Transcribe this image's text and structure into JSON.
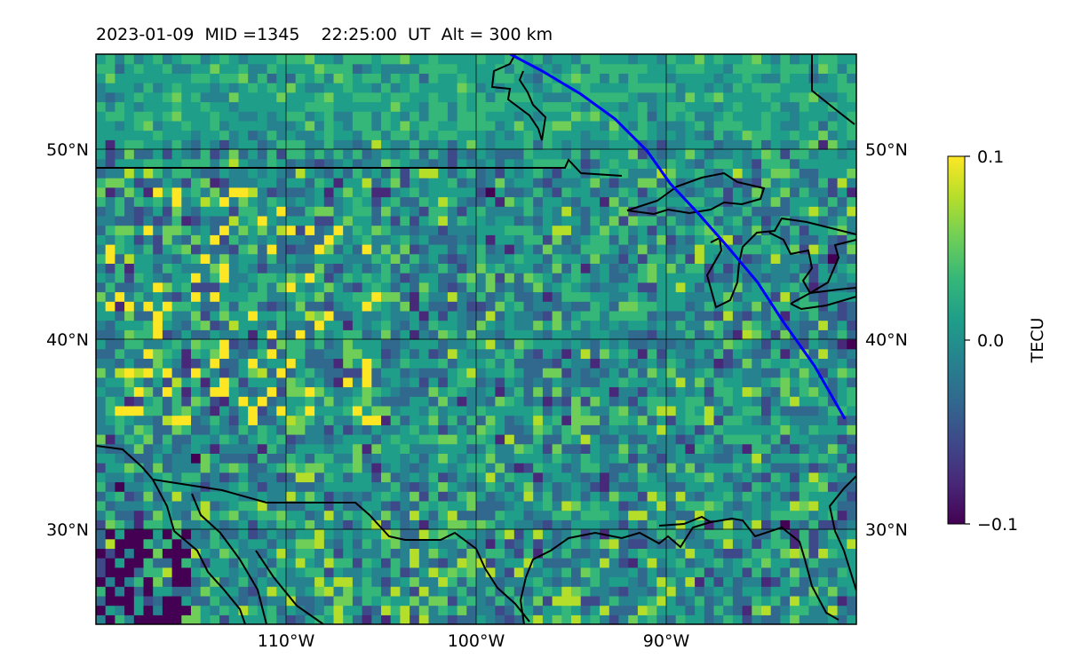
{
  "title": "2023-01-09  MID =1345    22:25:00  UT  Alt = 300 km",
  "chart_data": {
    "type": "heatmap",
    "title": "2023-01-09  MID =1345    22:25:00  UT  Alt = 300 km",
    "xlabel": "",
    "ylabel": "",
    "xlim": [
      -120,
      -80
    ],
    "ylim": [
      25,
      55
    ],
    "x_ticks": [
      -110,
      -100,
      -90
    ],
    "x_tick_labels": [
      "110°W",
      "100°W",
      "90°W"
    ],
    "y_ticks": [
      30,
      40,
      50
    ],
    "y_tick_labels": [
      "30°N",
      "40°N",
      "50°N"
    ],
    "grid": true,
    "colormap": "viridis",
    "colorbar": {
      "label": "TECU",
      "range": [
        -0.1,
        0.1
      ],
      "ticks": [
        0.1,
        0.0,
        -0.1
      ],
      "tick_labels": [
        "0.1",
        "0.0",
        "−0.1"
      ]
    },
    "overlay_track": {
      "color": "#0000ff",
      "lon": [
        -98.2,
        -96.5,
        -94.5,
        -92.7,
        -91.0,
        -89.8,
        -88.3,
        -86.8,
        -85.2,
        -83.9,
        -82.2,
        -80.6
      ],
      "lat": [
        55.0,
        54.1,
        52.9,
        51.6,
        49.9,
        48.2,
        46.6,
        44.9,
        43.0,
        41.0,
        38.6,
        35.8
      ]
    },
    "pixel_grid_deg": 0.5
  },
  "colors": {
    "viridis": [
      "#440154",
      "#482878",
      "#3e4989",
      "#31688e",
      "#26828e",
      "#1f9e89",
      "#35b779",
      "#6ece58",
      "#b5de2b",
      "#fde725"
    ],
    "track": "#0000ff",
    "coastline": "#000000"
  }
}
